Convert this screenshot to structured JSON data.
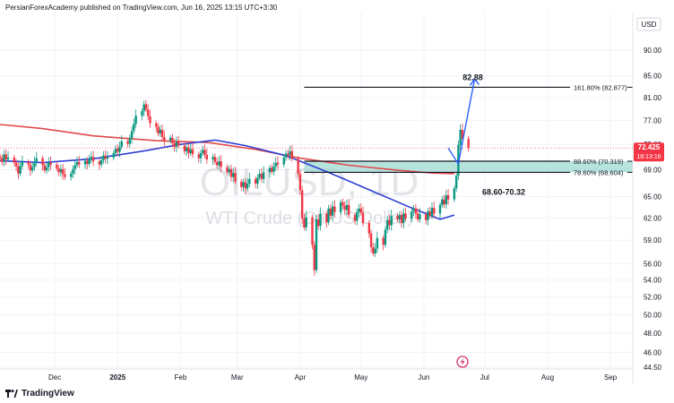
{
  "header": {
    "publisher_line": "PersianForexAcademy published on TradingView.com, Jun 16, 2025 13:15 UTC+3:30"
  },
  "footer": {
    "brand": "TradingView",
    "brand_icon": "tradingview-logo-icon"
  },
  "watermark": {
    "symbol": "OILUSD, 1D",
    "name": "WTI Crude (Oil/US Dollar)"
  },
  "colors": {
    "up": "#089981",
    "down": "#f23645",
    "ma_red": "#e0494b",
    "ma_blue": "#2e3fd6",
    "zone": "#9fd9d1",
    "target_arrow": "#2962ff",
    "price_label": "#f23645",
    "grid": "#f0f3fa",
    "text": "#131722"
  },
  "chart_data": {
    "type": "candlestick",
    "title": "",
    "currency_label": "USD",
    "y_ticks": [
      90.0,
      85.0,
      81.0,
      77.0,
      73.0,
      69.0,
      65.0,
      62.0,
      59.0,
      56.0,
      54.0,
      52.0,
      50.0,
      48.0,
      46.0,
      44.5
    ],
    "y_tick_labels": [
      "90.00",
      "85.00",
      "81.00",
      "77.00",
      "73.00",
      "69.00",
      "65.00",
      "62.00",
      "59.00",
      "56.00",
      "54.00",
      "52.00",
      "50.00",
      "48.00",
      "46.00",
      "44.50"
    ],
    "y_scale": "log",
    "ylim": [
      44.0,
      94.0
    ],
    "x_range": [
      "2024-11-04",
      "2025-09-12"
    ],
    "x_ticks": [
      {
        "label": "Dec",
        "date": "2024-12-01"
      },
      {
        "label": "2025",
        "date": "2025-01-01"
      },
      {
        "label": "Feb",
        "date": "2025-02-01"
      },
      {
        "label": "Mar",
        "date": "2025-03-01"
      },
      {
        "label": "Apr",
        "date": "2025-04-01"
      },
      {
        "label": "May",
        "date": "2025-05-01"
      },
      {
        "label": "Jun",
        "date": "2025-06-01"
      },
      {
        "label": "Jul",
        "date": "2025-07-01"
      },
      {
        "label": "Aug",
        "date": "2025-08-01"
      },
      {
        "label": "Sep",
        "date": "2025-09-01"
      }
    ],
    "candles_close": [
      70.8,
      70.2,
      71.4,
      70.6,
      70.9,
      70.1,
      69.5,
      68.4,
      69.6,
      70.2,
      69.8,
      68.9,
      69.4,
      70.2,
      70.8,
      69.7,
      68.9,
      69.4,
      70.1,
      69.8,
      69.2,
      68.6,
      69.1,
      68.3,
      67.9,
      68.4,
      69.1,
      69.7,
      70.2,
      69.8,
      70.4,
      69.9,
      70.6,
      71.0,
      70.3,
      69.8,
      70.5,
      71.2,
      70.7,
      70.9,
      71.6,
      72.3,
      71.8,
      72.6,
      73.5,
      73.1,
      74.0,
      75.2,
      76.4,
      77.8,
      78.6,
      79.8,
      78.9,
      77.7,
      76.5,
      75.9,
      74.8,
      75.4,
      74.2,
      73.6,
      74.1,
      73.2,
      72.6,
      73.4,
      72.8,
      71.9,
      72.5,
      71.6,
      72.2,
      71.4,
      70.8,
      71.6,
      72.1,
      71.3,
      70.6,
      71.0,
      70.2,
      69.7,
      70.3,
      69.4,
      68.6,
      69.1,
      67.9,
      68.5,
      67.2,
      66.4,
      67.1,
      66.2,
      66.9,
      67.6,
      66.9,
      67.8,
      68.4,
      67.6,
      68.6,
      69.3,
      68.7,
      69.5,
      70.1,
      69.8,
      70.9,
      71.5,
      71.3,
      71.9,
      70.7,
      68.4,
      65.9,
      61.9,
      60.7,
      62.1,
      58.4,
      55.2,
      61.8,
      60.9,
      62.6,
      61.4,
      63.3,
      62.3,
      63.6,
      62.8,
      64.2,
      63.7,
      63.1,
      63.8,
      62.4,
      61.6,
      62.8,
      63.3,
      62.7,
      61.3,
      59.9,
      58.1,
      57.3,
      57.9,
      59.3,
      58.4,
      60.4,
      61.7,
      61.0,
      62.3,
      61.8,
      62.4,
      61.3,
      62.6,
      61.9,
      62.9,
      63.3,
      62.6,
      61.8,
      62.5,
      61.7,
      62.9,
      62.3,
      63.4,
      62.6,
      63.8,
      64.6,
      63.9,
      65.2,
      64.6,
      66.2,
      68.1,
      72.9,
      75.4,
      73.9,
      72.4
    ],
    "start_price": 71.1,
    "ma_red": {
      "name": "",
      "points": [
        [
          "2024-11-04",
          76.3
        ],
        [
          "2024-11-25",
          75.6
        ],
        [
          "2024-12-20",
          74.4
        ],
        [
          "2025-01-20",
          73.6
        ],
        [
          "2025-02-15",
          73.3
        ],
        [
          "2025-03-10",
          72.2
        ],
        [
          "2025-04-01",
          70.8
        ],
        [
          "2025-04-25",
          69.7
        ],
        [
          "2025-05-20",
          68.9
        ],
        [
          "2025-06-05",
          68.5
        ],
        [
          "2025-06-16",
          68.4
        ]
      ]
    },
    "ma_blue": {
      "name": "",
      "points": [
        [
          "2024-11-04",
          70.4
        ],
        [
          "2024-11-25",
          70.1
        ],
        [
          "2024-12-20",
          70.7
        ],
        [
          "2025-01-15",
          72.0
        ],
        [
          "2025-02-01",
          73.0
        ],
        [
          "2025-02-18",
          73.7
        ],
        [
          "2025-03-05",
          72.8
        ],
        [
          "2025-03-25",
          71.2
        ],
        [
          "2025-04-15",
          68.6
        ],
        [
          "2025-05-05",
          66.0
        ],
        [
          "2025-05-25",
          63.5
        ],
        [
          "2025-06-09",
          61.8
        ],
        [
          "2025-06-16",
          62.4
        ]
      ]
    },
    "zone": {
      "low": 68.6,
      "high": 70.32,
      "from": "2025-04-03",
      "to": "2025-09-12",
      "label": "68.60-70.32"
    },
    "fib_levels": [
      {
        "label": "161.80% (82.877)",
        "value": 82.877,
        "from": "2025-04-03"
      },
      {
        "label": "88.60% (70.319)",
        "value": 70.319,
        "from": "2025-04-03"
      },
      {
        "label": "78.60% (68.604)",
        "value": 68.604,
        "from": "2025-04-03"
      }
    ],
    "target": {
      "label": "82.88",
      "value": 82.88
    },
    "projection": [
      [
        "2025-06-13",
        72.4
      ],
      [
        "2025-06-18",
        69.9
      ],
      [
        "2025-06-26",
        84.4
      ]
    ],
    "last_price": {
      "value": "72.425",
      "countdown": "18:13:16"
    }
  }
}
